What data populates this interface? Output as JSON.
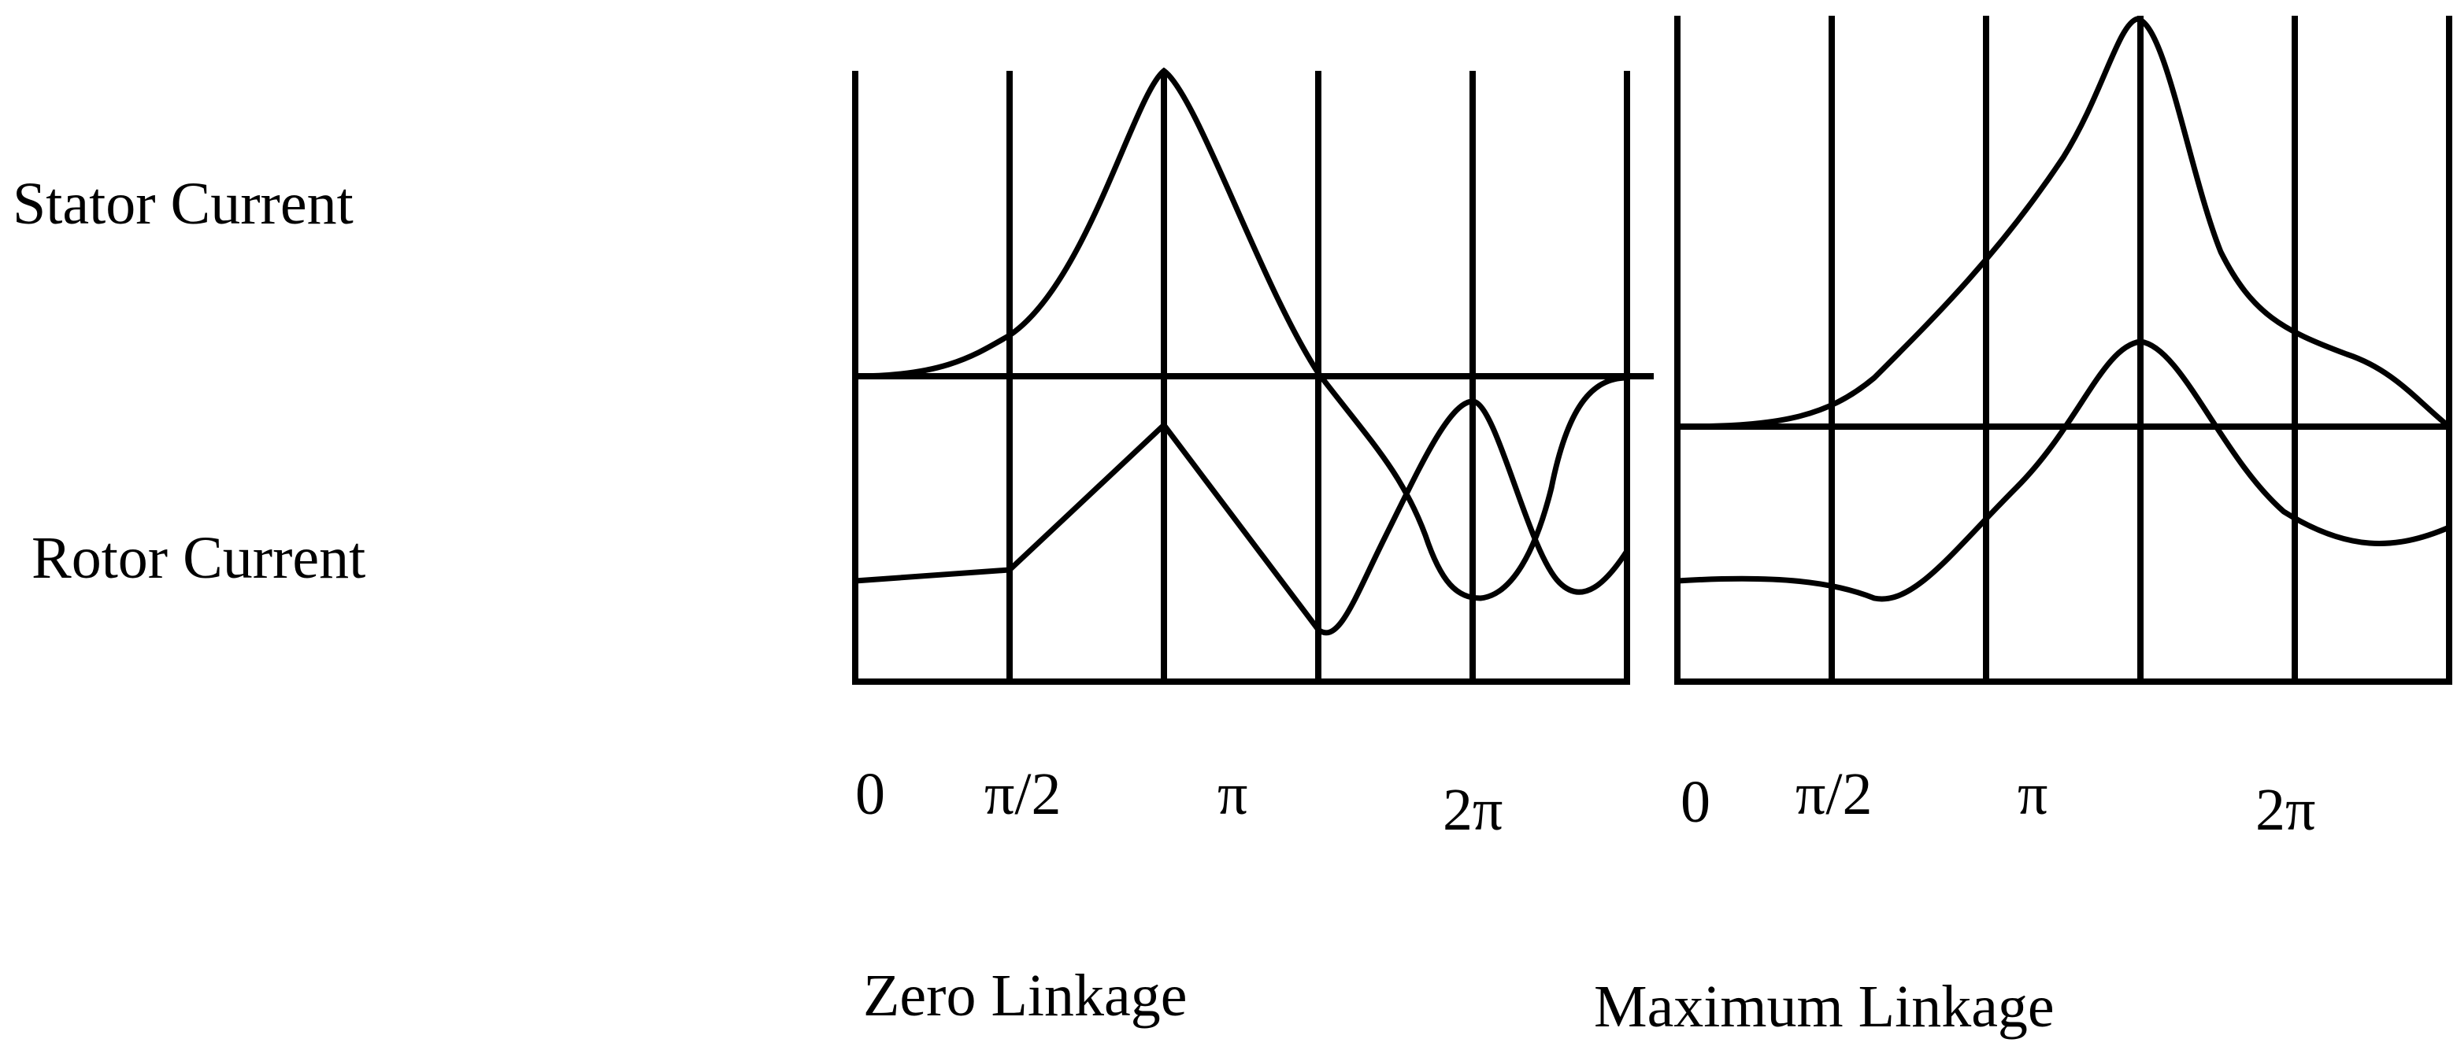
{
  "row_labels": [
    "Stator Current",
    "Rotor Current"
  ],
  "panels": [
    {
      "x_labels": [
        "0",
        "π/2",
        "π",
        "2π"
      ],
      "caption": "Zero Linkage"
    },
    {
      "x_labels": [
        "0",
        "π/2",
        "π",
        "2π"
      ],
      "caption": "Maximum Linkage"
    }
  ]
}
